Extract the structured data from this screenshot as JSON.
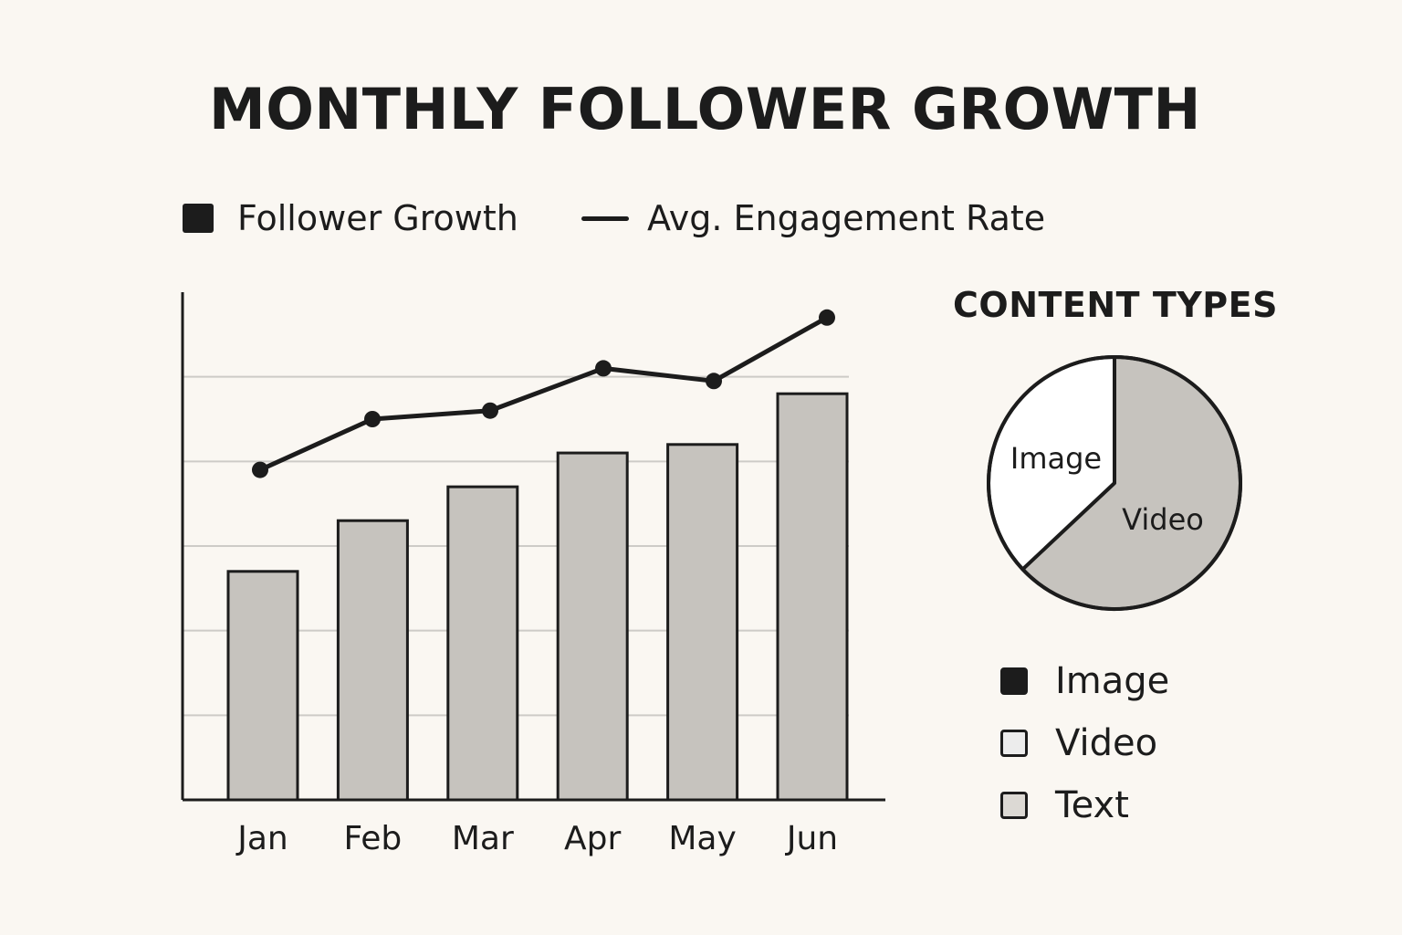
{
  "chart_data": [
    {
      "type": "bar",
      "title": "MONTHLY FOLLOWER GROWTH",
      "categories": [
        "Jan",
        "Feb",
        "Mar",
        "Apr",
        "May",
        "Jun"
      ],
      "series": [
        {
          "name": "Follower Growth",
          "kind": "bar",
          "values": [
            27,
            33,
            37,
            41,
            42,
            48
          ]
        },
        {
          "name": "Avg. Engagement Rate",
          "kind": "line",
          "values": [
            39,
            45,
            46,
            51,
            49.5,
            57
          ]
        }
      ],
      "ylim": [
        0,
        60
      ],
      "grid": true,
      "xlabel": "",
      "ylabel": "",
      "legend_position": "top"
    },
    {
      "type": "pie",
      "title": "CONTENT TYPES",
      "slices": [
        {
          "label": "Image",
          "value": 37
        },
        {
          "label": "Video",
          "value": 63
        }
      ],
      "legend": [
        {
          "label": "Image",
          "color": "#1c1c1c"
        },
        {
          "label": "Video",
          "color": "#ececec"
        },
        {
          "label": "Text",
          "color": "#dcd9d4"
        }
      ]
    }
  ],
  "colors": {
    "ink": "#1c1c1c",
    "bar_fill": "#c6c3be",
    "grid": "#cdcbc7",
    "image_slice": "#ffffff",
    "video_slice": "#c6c3be",
    "background": "#faf7f2"
  }
}
